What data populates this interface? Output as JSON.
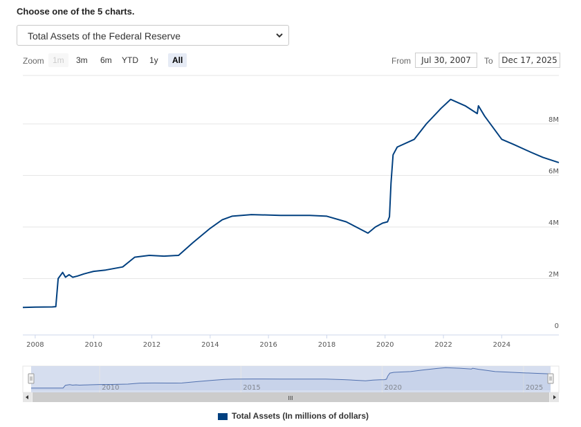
{
  "header": {
    "title": "Choose one of the 5 charts."
  },
  "selector": {
    "value": "Total Assets of the Federal Reserve"
  },
  "toolbar": {
    "zoom_label": "Zoom",
    "zoom_buttons": [
      "1m",
      "3m",
      "6m",
      "YTD",
      "1y",
      "All"
    ],
    "from_label": "From",
    "from_value": "Jul 30, 2007",
    "to_label": "To",
    "to_value": "Dec 17, 2025"
  },
  "navigator": {
    "ticks": [
      "2010",
      "2015",
      "2020",
      "2025"
    ],
    "scroll_handle": "III"
  },
  "legend": {
    "label": "Total Assets (In millions of dollars)",
    "color": "#003f7f"
  },
  "chart_data": {
    "type": "line",
    "title": "",
    "xlabel": "",
    "ylabel": "",
    "x_ticks": [
      "2008",
      "2010",
      "2012",
      "2014",
      "2016",
      "2018",
      "2020",
      "2022",
      "2024"
    ],
    "y_ticks": [
      "0",
      "2M",
      "4M",
      "6M",
      "8M"
    ],
    "ylim": [
      0,
      10000000
    ],
    "grid": "horizontal",
    "legend_position": "bottom-center",
    "series": [
      {
        "name": "Total Assets (In millions of dollars)",
        "color": "#003f7f",
        "x": [
          "2007-07-30",
          "2008-01-01",
          "2008-08-01",
          "2008-09-15",
          "2008-10-15",
          "2008-12-10",
          "2009-01-15",
          "2009-03-01",
          "2009-04-15",
          "2009-06-15",
          "2009-09-01",
          "2010-01-01",
          "2010-06-01",
          "2011-01-01",
          "2011-06-01",
          "2011-12-01",
          "2012-06-01",
          "2012-12-01",
          "2013-06-01",
          "2014-01-01",
          "2014-06-01",
          "2014-10-01",
          "2015-06-01",
          "2016-06-01",
          "2017-06-01",
          "2018-01-01",
          "2018-09-01",
          "2019-06-01",
          "2019-09-01",
          "2019-12-01",
          "2020-02-01",
          "2020-02-25",
          "2020-03-15",
          "2020-04-10",
          "2020-06-01",
          "2021-01-01",
          "2021-06-01",
          "2021-12-01",
          "2022-04-01",
          "2022-10-01",
          "2023-03-01",
          "2023-03-15",
          "2023-06-01",
          "2024-01-01",
          "2024-06-01",
          "2025-01-01",
          "2025-06-01",
          "2025-12-17"
        ],
        "y": [
          880000,
          890000,
          900000,
          910000,
          2000000,
          2240000,
          2050000,
          2150000,
          2050000,
          2100000,
          2180000,
          2280000,
          2330000,
          2450000,
          2830000,
          2900000,
          2870000,
          2900000,
          3400000,
          3950000,
          4280000,
          4420000,
          4480000,
          4450000,
          4450000,
          4420000,
          4200000,
          3760000,
          4000000,
          4150000,
          4200000,
          4400000,
          5700000,
          6800000,
          7100000,
          7400000,
          8000000,
          8600000,
          8950000,
          8700000,
          8400000,
          8700000,
          8300000,
          7400000,
          7200000,
          6900000,
          6700000,
          6500000
        ]
      }
    ]
  }
}
